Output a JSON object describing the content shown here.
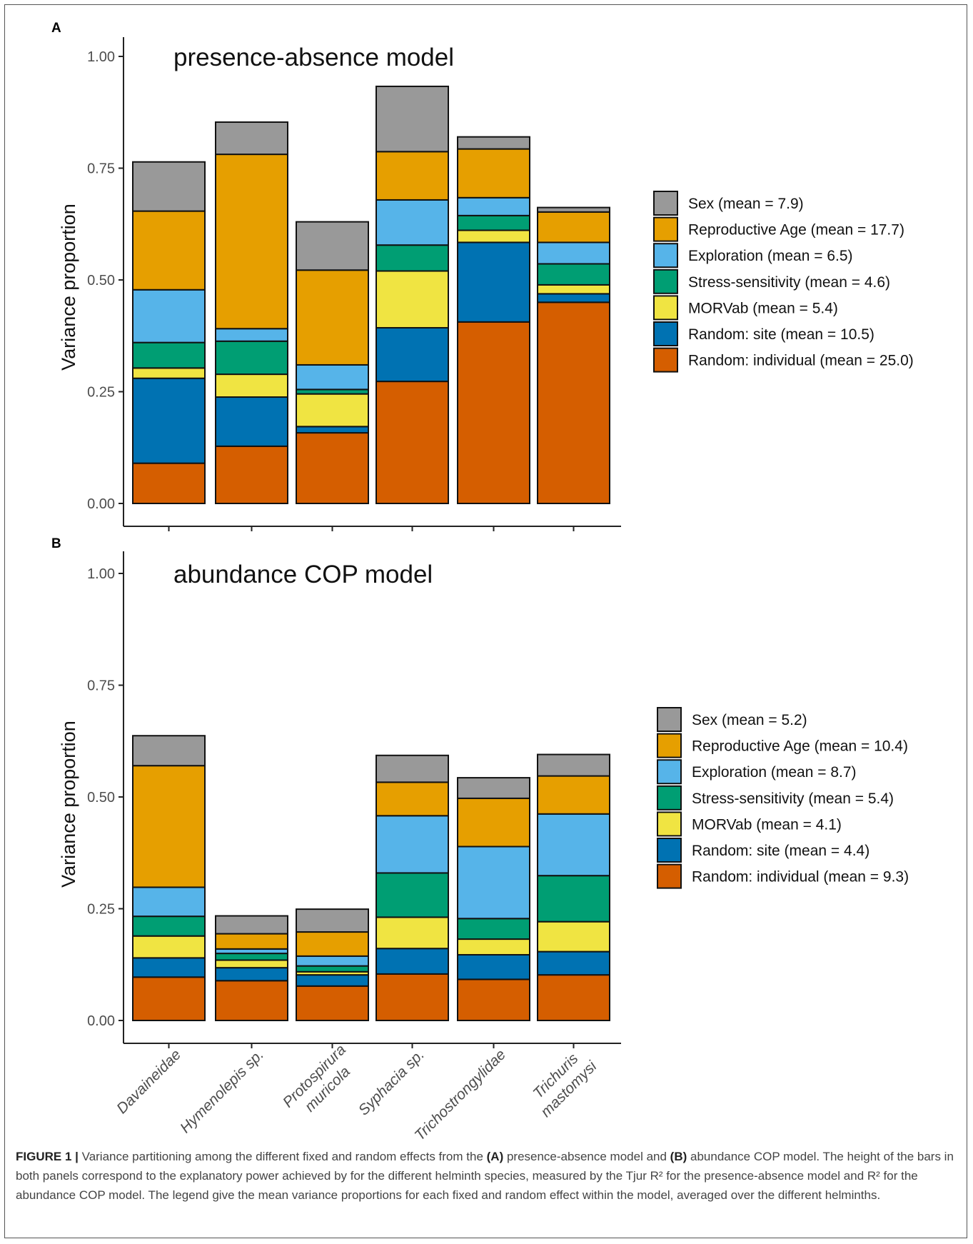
{
  "colors": {
    "Sex": "#999999",
    "Reproductive Age": "#E69F00",
    "Exploration": "#56B4E9",
    "Stress-sensitivity": "#009E73",
    "MORVab": "#F0E442",
    "Random: site": "#0072B2",
    "Random: individual": "#D55E00"
  },
  "chart_data": [
    {
      "type": "bar",
      "stacked": true,
      "panel_label": "A",
      "title": "presence-absence model",
      "ylabel": "Variance proportion",
      "xlabel": "",
      "ylim": [
        0,
        1.0
      ],
      "yticks": [
        "0.00",
        "0.25",
        "0.50",
        "0.75",
        "1.00"
      ],
      "categories": [
        "Davaineidae",
        "Hymenolepis sp.",
        "Protospirura muricola",
        "Syphacia sp.",
        "Trichostrongylidae",
        "Trichuris mastomysi"
      ],
      "series": [
        {
          "name": "Random: individual",
          "values": [
            0.09,
            0.128,
            0.158,
            0.273,
            0.406,
            0.45
          ]
        },
        {
          "name": "Random: site",
          "values": [
            0.19,
            0.11,
            0.014,
            0.12,
            0.178,
            0.019
          ]
        },
        {
          "name": "MORVab",
          "values": [
            0.023,
            0.051,
            0.073,
            0.127,
            0.027,
            0.02
          ]
        },
        {
          "name": "Stress-sensitivity",
          "values": [
            0.057,
            0.074,
            0.01,
            0.058,
            0.033,
            0.047
          ]
        },
        {
          "name": "Exploration",
          "values": [
            0.118,
            0.028,
            0.055,
            0.101,
            0.04,
            0.048
          ]
        },
        {
          "name": "Reproductive Age",
          "values": [
            0.176,
            0.39,
            0.212,
            0.108,
            0.109,
            0.068
          ]
        },
        {
          "name": "Sex",
          "values": [
            0.11,
            0.072,
            0.108,
            0.146,
            0.027,
            0.01
          ]
        }
      ],
      "legend": [
        {
          "key": "Sex",
          "label": "Sex (mean = 7.9)"
        },
        {
          "key": "Reproductive Age",
          "label": "Reproductive Age (mean = 17.7)"
        },
        {
          "key": "Exploration",
          "label": "Exploration (mean = 6.5)"
        },
        {
          "key": "Stress-sensitivity",
          "label": "Stress-sensitivity (mean = 4.6)"
        },
        {
          "key": "MORVab",
          "label": "MORVab (mean = 5.4)"
        },
        {
          "key": "Random: site",
          "label": "Random: site (mean = 10.5)"
        },
        {
          "key": "Random: individual",
          "label": "Random: individual (mean = 25.0)"
        }
      ],
      "legend_position": "right"
    },
    {
      "type": "bar",
      "stacked": true,
      "panel_label": "B",
      "title": "abundance COP model",
      "ylabel": "Variance proportion",
      "xlabel": "",
      "ylim": [
        0,
        1.0
      ],
      "yticks": [
        "0.00",
        "0.25",
        "0.50",
        "0.75",
        "1.00"
      ],
      "categories": [
        "Davaineidae",
        "Hymenolepis sp.",
        "Protospirura muricola",
        "Syphacia sp.",
        "Trichostrongylidae",
        "Trichuris mastomysi"
      ],
      "series": [
        {
          "name": "Random: individual",
          "values": [
            0.097,
            0.089,
            0.077,
            0.104,
            0.092,
            0.102
          ]
        },
        {
          "name": "Random: site",
          "values": [
            0.043,
            0.029,
            0.025,
            0.057,
            0.055,
            0.052
          ]
        },
        {
          "name": "MORVab",
          "values": [
            0.049,
            0.017,
            0.007,
            0.07,
            0.035,
            0.067
          ]
        },
        {
          "name": "Stress-sensitivity",
          "values": [
            0.044,
            0.015,
            0.013,
            0.099,
            0.046,
            0.103
          ]
        },
        {
          "name": "Exploration",
          "values": [
            0.065,
            0.01,
            0.022,
            0.128,
            0.161,
            0.138
          ]
        },
        {
          "name": "Reproductive Age",
          "values": [
            0.272,
            0.034,
            0.054,
            0.075,
            0.108,
            0.085
          ]
        },
        {
          "name": "Sex",
          "values": [
            0.067,
            0.04,
            0.051,
            0.06,
            0.046,
            0.048
          ]
        }
      ],
      "legend": [
        {
          "key": "Sex",
          "label": "Sex (mean = 5.2)"
        },
        {
          "key": "Reproductive Age",
          "label": "Reproductive Age (mean = 10.4)"
        },
        {
          "key": "Exploration",
          "label": "Exploration (mean = 8.7)"
        },
        {
          "key": "Stress-sensitivity",
          "label": "Stress-sensitivity (mean = 5.4)"
        },
        {
          "key": "MORVab",
          "label": "MORVab (mean = 4.1)"
        },
        {
          "key": "Random: site",
          "label": "Random: site (mean = 4.4)"
        },
        {
          "key": "Random: individual",
          "label": "Random: individual (mean = 9.3)"
        }
      ],
      "legend_position": "right"
    }
  ],
  "x_tick_labels": [
    [
      "Davaineidae"
    ],
    [
      "Hymenolepis sp."
    ],
    [
      "Protospirura",
      "muricola"
    ],
    [
      "Syphacia sp."
    ],
    [
      "Trichostrongylidae"
    ],
    [
      "Trichuris",
      "mastomysi"
    ]
  ],
  "caption": {
    "label": "FIGURE 1 |",
    "t1": " Variance partitioning among the different fixed and random effects from the ",
    "b1": "(A)",
    "t2": " presence-absence model and ",
    "b2": "(B)",
    "t3": " abundance COP model. The height of the bars in both panels correspond to the explanatory power achieved by for the different helminth species, measured by the Tjur R² for the presence-absence model and R² for the abundance COP model. The legend give the mean variance proportions for each fixed and random effect within the model, averaged over the different helminths."
  }
}
